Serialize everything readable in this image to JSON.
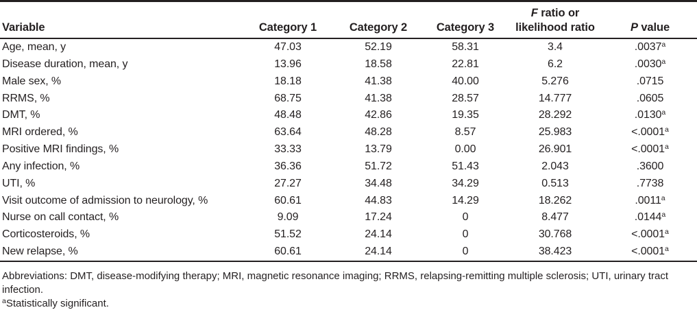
{
  "table": {
    "headers": {
      "variable": "Variable",
      "category1": "Category 1",
      "category2": "Category 2",
      "category3": "Category 3",
      "f_ratio": {
        "italic": "F",
        "rest": " ratio or",
        "line2": "likelihood ratio"
      },
      "p_value": {
        "italic": "P",
        "rest": " value"
      }
    },
    "rows": [
      {
        "variable": "Age, mean, y",
        "category1": "47.03",
        "category2": "52.19",
        "category3": "58.31",
        "f_ratio": "3.4",
        "p_value": ".0037",
        "p_sup": "a"
      },
      {
        "variable": "Disease duration, mean, y",
        "category1": "13.96",
        "category2": "18.58",
        "category3": "22.81",
        "f_ratio": "6.2",
        "p_value": ".0030",
        "p_sup": "a"
      },
      {
        "variable": "Male sex, %",
        "category1": "18.18",
        "category2": "41.38",
        "category3": "40.00",
        "f_ratio": "5.276",
        "p_value": ".0715",
        "p_sup": ""
      },
      {
        "variable": "RRMS, %",
        "category1": "68.75",
        "category2": "41.38",
        "category3": "28.57",
        "f_ratio": "14.777",
        "p_value": ".0605",
        "p_sup": ""
      },
      {
        "variable": "DMT, %",
        "category1": "48.48",
        "category2": "42.86",
        "category3": "19.35",
        "f_ratio": "28.292",
        "p_value": ".0130",
        "p_sup": "a"
      },
      {
        "variable": "MRI ordered, %",
        "category1": "63.64",
        "category2": "48.28",
        "category3": "8.57",
        "f_ratio": "25.983",
        "p_value": "<.0001",
        "p_sup": "a"
      },
      {
        "variable": "Positive MRI findings, %",
        "category1": "33.33",
        "category2": "13.79",
        "category3": "0.00",
        "f_ratio": "26.901",
        "p_value": "<.0001",
        "p_sup": "a"
      },
      {
        "variable": "Any infection, %",
        "category1": "36.36",
        "category2": "51.72",
        "category3": "51.43",
        "f_ratio": "2.043",
        "p_value": ".3600",
        "p_sup": ""
      },
      {
        "variable": "UTI, %",
        "category1": "27.27",
        "category2": "34.48",
        "category3": "34.29",
        "f_ratio": "0.513",
        "p_value": ".7738",
        "p_sup": ""
      },
      {
        "variable": "Visit outcome of admission to neurology, %",
        "category1": "60.61",
        "category2": "44.83",
        "category3": "14.29",
        "f_ratio": "18.262",
        "p_value": ".0011",
        "p_sup": "a"
      },
      {
        "variable": "Nurse on call contact, %",
        "category1": "9.09",
        "category2": "17.24",
        "category3": "0",
        "f_ratio": "8.477",
        "p_value": ".0144",
        "p_sup": "a"
      },
      {
        "variable": "Corticosteroids, %",
        "category1": "51.52",
        "category2": "24.14",
        "category3": "0",
        "f_ratio": "30.768",
        "p_value": "<.0001",
        "p_sup": "a"
      },
      {
        "variable": "New relapse, %",
        "category1": "60.61",
        "category2": "24.14",
        "category3": "0",
        "f_ratio": "38.423",
        "p_value": "<.0001",
        "p_sup": "a"
      }
    ]
  },
  "footnotes": {
    "abbreviations": "Abbreviations: DMT, disease-modifying therapy; MRI, magnetic resonance imaging; RRMS, relapsing-remitting multiple sclerosis; UTI, urinary tract infection.",
    "significance_marker": "a",
    "significance": "Statistically significant."
  },
  "colors": {
    "text": "#231f20",
    "rule": "#231f20",
    "background": "#ffffff"
  }
}
